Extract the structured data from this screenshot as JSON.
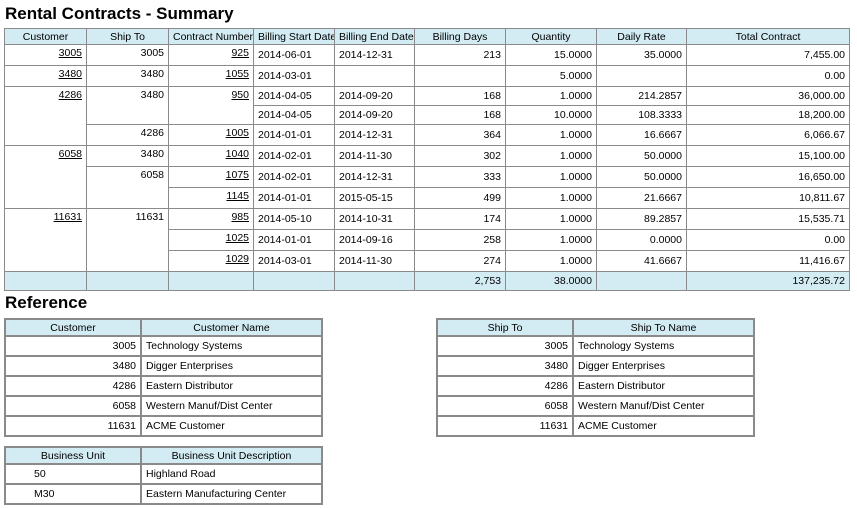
{
  "title": "Rental Contracts - Summary",
  "summary": {
    "columns": [
      "Customer",
      "Ship To",
      "Contract Number",
      "Billing Start Date",
      "Billing End Date",
      "Billing Days",
      "Quantity",
      "Daily Rate",
      "Total Contract"
    ],
    "groups": [
      {
        "customer": "3005",
        "ship_tos": [
          {
            "ship_to": "3005",
            "contracts": [
              {
                "contract": "925",
                "lines": [
                  {
                    "start": "2014-06-01",
                    "end": "2014-12-31",
                    "days": "213",
                    "quantity": "15.0000",
                    "rate": "35.0000",
                    "total": "7,455.00"
                  }
                ]
              }
            ]
          }
        ]
      },
      {
        "customer": "3480",
        "ship_tos": [
          {
            "ship_to": "3480",
            "contracts": [
              {
                "contract": "1055",
                "lines": [
                  {
                    "start": "2014-03-01",
                    "quantity": "5.0000",
                    "total": "0.00"
                  }
                ]
              }
            ]
          }
        ]
      },
      {
        "customer": "4286",
        "ship_tos": [
          {
            "ship_to": "3480",
            "contracts": [
              {
                "contract": "950",
                "lines": [
                  {
                    "start": "2014-04-05",
                    "end": "2014-09-20",
                    "days": "168",
                    "quantity": "1.0000",
                    "rate": "214.2857",
                    "total": "36,000.00"
                  },
                  {
                    "start": "2014-04-05",
                    "end": "2014-09-20",
                    "days": "168",
                    "quantity": "10.0000",
                    "rate": "108.3333",
                    "total": "18,200.00"
                  }
                ]
              }
            ]
          },
          {
            "ship_to": "4286",
            "contracts": [
              {
                "contract": "1005",
                "lines": [
                  {
                    "start": "2014-01-01",
                    "end": "2014-12-31",
                    "days": "364",
                    "quantity": "1.0000",
                    "rate": "16.6667",
                    "total": "6,066.67"
                  }
                ]
              }
            ]
          }
        ]
      },
      {
        "customer": "6058",
        "ship_tos": [
          {
            "ship_to": "3480",
            "contracts": [
              {
                "contract": "1040",
                "lines": [
                  {
                    "start": "2014-02-01",
                    "end": "2014-11-30",
                    "days": "302",
                    "quantity": "1.0000",
                    "rate": "50.0000",
                    "total": "15,100.00"
                  }
                ]
              }
            ]
          },
          {
            "ship_to": "6058",
            "contracts": [
              {
                "contract": "1075",
                "lines": [
                  {
                    "start": "2014-02-01",
                    "end": "2014-12-31",
                    "days": "333",
                    "quantity": "1.0000",
                    "rate": "50.0000",
                    "total": "16,650.00"
                  }
                ]
              },
              {
                "contract": "1145",
                "lines": [
                  {
                    "start": "2014-01-01",
                    "end": "2015-05-15",
                    "days": "499",
                    "quantity": "1.0000",
                    "rate": "21.6667",
                    "total": "10,811.67"
                  }
                ]
              }
            ]
          }
        ]
      },
      {
        "customer": "11631",
        "ship_tos": [
          {
            "ship_to": "11631",
            "contracts": [
              {
                "contract": "985",
                "lines": [
                  {
                    "start": "2014-05-10",
                    "end": "2014-10-31",
                    "days": "174",
                    "quantity": "1.0000",
                    "rate": "89.2857",
                    "total": "15,535.71"
                  }
                ]
              },
              {
                "contract": "1025",
                "lines": [
                  {
                    "start": "2014-01-01",
                    "end": "2014-09-16",
                    "days": "258",
                    "quantity": "1.0000",
                    "rate": "0.0000",
                    "total": "0.00"
                  }
                ]
              },
              {
                "contract": "1029",
                "lines": [
                  {
                    "start": "2014-03-01",
                    "end": "2014-11-30",
                    "days": "274",
                    "quantity": "1.0000",
                    "rate": "41.6667",
                    "total": "11,416.67"
                  }
                ]
              }
            ]
          }
        ]
      }
    ],
    "totals": {
      "days": "2,753",
      "quantity": "38.0000",
      "total": "137,235.72"
    }
  },
  "reference": {
    "title": "Reference",
    "customers": {
      "columns": [
        "Customer",
        "Customer Name"
      ],
      "rows": [
        [
          "3005",
          "Technology Systems"
        ],
        [
          "3480",
          "Digger Enterprises"
        ],
        [
          "4286",
          "Eastern Distributor"
        ],
        [
          "6058",
          "Western Manuf/Dist Center"
        ],
        [
          "11631",
          "ACME Customer"
        ]
      ]
    },
    "ship_tos": {
      "columns": [
        "Ship To",
        "Ship To Name"
      ],
      "rows": [
        [
          "3005",
          "Technology Systems"
        ],
        [
          "3480",
          "Digger Enterprises"
        ],
        [
          "4286",
          "Eastern Distributor"
        ],
        [
          "6058",
          "Western Manuf/Dist Center"
        ],
        [
          "11631",
          "ACME Customer"
        ]
      ]
    },
    "business_units": {
      "columns": [
        "Business Unit",
        "Business Unit Description"
      ],
      "rows": [
        [
          "50",
          "Highland Road"
        ],
        [
          "M30",
          "Eastern Manufacturing Center"
        ]
      ]
    }
  }
}
